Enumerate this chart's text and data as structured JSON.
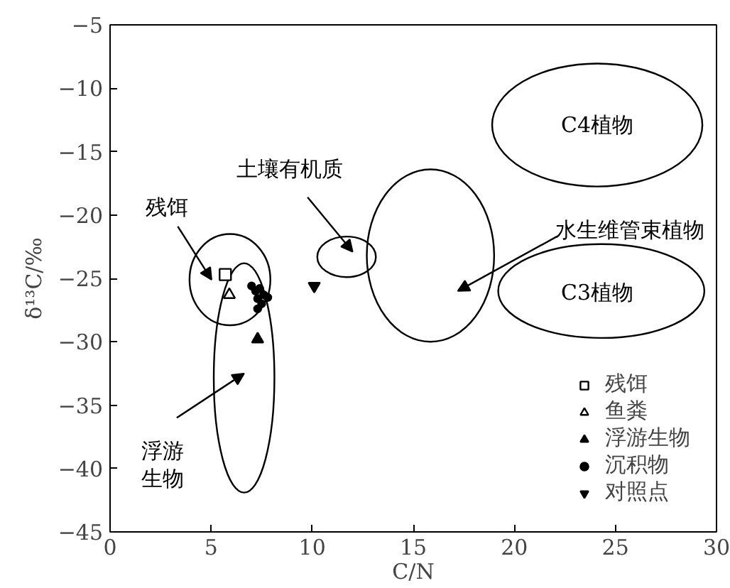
{
  "chart_data": {
    "type": "scatter",
    "xlabel": "C/N",
    "ylabel": "δ¹³C/‰",
    "xlim": [
      0,
      30
    ],
    "ylim": [
      -45,
      -5
    ],
    "xticks": [
      0,
      5,
      10,
      15,
      20,
      25,
      30
    ],
    "yticks": [
      -45,
      -40,
      -35,
      -30,
      -25,
      -20,
      -15,
      -10,
      -5
    ],
    "grid": false,
    "legend": "bottom right",
    "series": [
      {
        "name": "残饵",
        "color": "#000000",
        "marker": "square",
        "x": [
          5.7
        ],
        "values": [
          -24.7
        ]
      },
      {
        "name": "鱼粪",
        "color": "#000000",
        "marker": "triangle",
        "x": [
          5.9
        ],
        "values": [
          -26.3
        ]
      },
      {
        "name": "浮游生物",
        "color": "#000000",
        "marker": "triangle",
        "x": [
          7.3
        ],
        "values": [
          -29.8
        ]
      },
      {
        "name": "沉积物",
        "color": "#000000",
        "marker": "circle",
        "x": [
          7.0,
          7.2,
          7.4,
          7.6,
          7.8,
          7.3,
          7.5,
          7.3
        ],
        "values": [
          -25.6,
          -26.0,
          -25.8,
          -26.3,
          -26.5,
          -26.6,
          -27.0,
          -27.4
        ]
      },
      {
        "name": "对照点",
        "color": "#000000",
        "marker": "triangle",
        "x": [
          10.1
        ],
        "values": [
          -25.6
        ]
      }
    ],
    "annotations": [
      "残饵",
      "浮游生物",
      "土壤有机质",
      "水生维管束植物",
      "C4植物",
      "C3植物"
    ]
  }
}
